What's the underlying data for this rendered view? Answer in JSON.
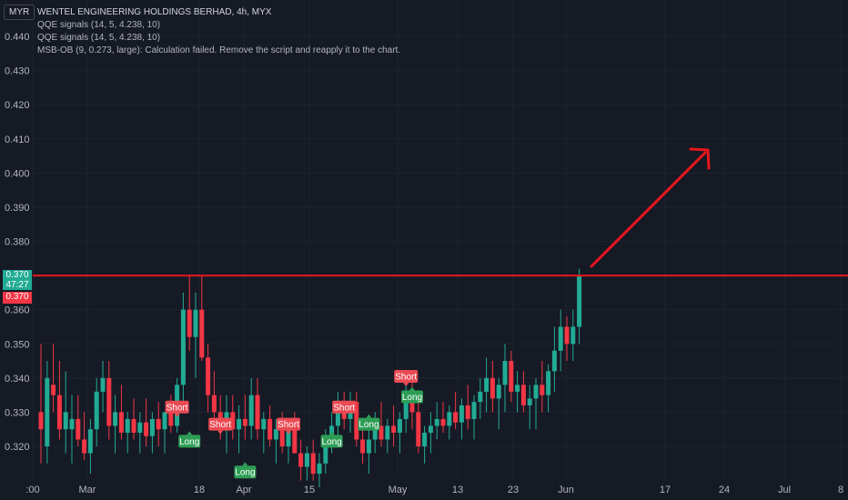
{
  "header": {
    "currency": "MYR",
    "title": "WENTEL ENGINEERING HOLDINGS BERHAD, 4h, MYX",
    "indicators": [
      "QQE signals (14, 5, 4.238, 10)",
      "QQE signals (14, 5, 4.238, 10)",
      "MSB-OB (9, 0.273, large): Calculation failed. Remove the script and reapply it to the chart."
    ]
  },
  "price_tags": {
    "last_price": "0.370",
    "countdown": "47:27",
    "line_price": "0.370"
  },
  "colors": {
    "background": "#161a25",
    "grid": "#1f2330",
    "up": "#22ab94",
    "down": "#f23645",
    "axis_text": "#b2b5be",
    "drawing": "#e8161c",
    "long_label": "#2e9e55",
    "short_label": "#ea4a53"
  },
  "chart_data": {
    "type": "candlestick",
    "y_axis": {
      "ticks": [
        "0.440",
        "0.430",
        "0.420",
        "0.410",
        "0.400",
        "0.390",
        "0.380",
        "0.360",
        "0.350",
        "0.340",
        "0.330",
        "0.320"
      ],
      "range": [
        0.311,
        0.443
      ]
    },
    "x_axis": {
      "ticks": [
        ":00",
        "Mar",
        "18",
        "Apr",
        "15",
        "May",
        "13",
        "23",
        "Jun",
        "17",
        "24",
        "Jul",
        "8"
      ]
    },
    "candles": [
      {
        "o": 0.33,
        "h": 0.35,
        "l": 0.315,
        "c": 0.325
      },
      {
        "o": 0.32,
        "h": 0.345,
        "l": 0.315,
        "c": 0.34
      },
      {
        "o": 0.338,
        "h": 0.35,
        "l": 0.33,
        "c": 0.335
      },
      {
        "o": 0.335,
        "h": 0.345,
        "l": 0.322,
        "c": 0.325
      },
      {
        "o": 0.325,
        "h": 0.342,
        "l": 0.318,
        "c": 0.33
      },
      {
        "o": 0.325,
        "h": 0.335,
        "l": 0.315,
        "c": 0.328
      },
      {
        "o": 0.328,
        "h": 0.335,
        "l": 0.32,
        "c": 0.322
      },
      {
        "o": 0.322,
        "h": 0.33,
        "l": 0.316,
        "c": 0.318
      },
      {
        "o": 0.318,
        "h": 0.328,
        "l": 0.312,
        "c": 0.325
      },
      {
        "o": 0.325,
        "h": 0.34,
        "l": 0.32,
        "c": 0.336
      },
      {
        "o": 0.336,
        "h": 0.345,
        "l": 0.33,
        "c": 0.34
      },
      {
        "o": 0.34,
        "h": 0.345,
        "l": 0.322,
        "c": 0.326
      },
      {
        "o": 0.326,
        "h": 0.335,
        "l": 0.318,
        "c": 0.33
      },
      {
        "o": 0.33,
        "h": 0.338,
        "l": 0.322,
        "c": 0.324
      },
      {
        "o": 0.324,
        "h": 0.33,
        "l": 0.318,
        "c": 0.328
      },
      {
        "o": 0.328,
        "h": 0.334,
        "l": 0.322,
        "c": 0.324
      },
      {
        "o": 0.324,
        "h": 0.33,
        "l": 0.318,
        "c": 0.327
      },
      {
        "o": 0.327,
        "h": 0.334,
        "l": 0.32,
        "c": 0.323
      },
      {
        "o": 0.323,
        "h": 0.33,
        "l": 0.318,
        "c": 0.328
      },
      {
        "o": 0.328,
        "h": 0.333,
        "l": 0.32,
        "c": 0.325
      },
      {
        "o": 0.325,
        "h": 0.33,
        "l": 0.318,
        "c": 0.33
      },
      {
        "o": 0.33,
        "h": 0.335,
        "l": 0.324,
        "c": 0.326
      },
      {
        "o": 0.326,
        "h": 0.34,
        "l": 0.324,
        "c": 0.338
      },
      {
        "o": 0.338,
        "h": 0.365,
        "l": 0.33,
        "c": 0.36
      },
      {
        "o": 0.36,
        "h": 0.37,
        "l": 0.348,
        "c": 0.352
      },
      {
        "o": 0.352,
        "h": 0.365,
        "l": 0.34,
        "c": 0.36
      },
      {
        "o": 0.36,
        "h": 0.37,
        "l": 0.345,
        "c": 0.346
      },
      {
        "o": 0.346,
        "h": 0.35,
        "l": 0.33,
        "c": 0.335
      },
      {
        "o": 0.335,
        "h": 0.342,
        "l": 0.325,
        "c": 0.33
      },
      {
        "o": 0.33,
        "h": 0.335,
        "l": 0.322,
        "c": 0.326
      },
      {
        "o": 0.326,
        "h": 0.335,
        "l": 0.318,
        "c": 0.33
      },
      {
        "o": 0.33,
        "h": 0.335,
        "l": 0.322,
        "c": 0.325
      },
      {
        "o": 0.325,
        "h": 0.332,
        "l": 0.318,
        "c": 0.328
      },
      {
        "o": 0.328,
        "h": 0.335,
        "l": 0.322,
        "c": 0.326
      },
      {
        "o": 0.326,
        "h": 0.34,
        "l": 0.322,
        "c": 0.335
      },
      {
        "o": 0.335,
        "h": 0.34,
        "l": 0.322,
        "c": 0.325
      },
      {
        "o": 0.325,
        "h": 0.33,
        "l": 0.318,
        "c": 0.328
      },
      {
        "o": 0.328,
        "h": 0.332,
        "l": 0.32,
        "c": 0.322
      },
      {
        "o": 0.322,
        "h": 0.328,
        "l": 0.315,
        "c": 0.325
      },
      {
        "o": 0.325,
        "h": 0.33,
        "l": 0.318,
        "c": 0.32
      },
      {
        "o": 0.32,
        "h": 0.328,
        "l": 0.315,
        "c": 0.326
      },
      {
        "o": 0.326,
        "h": 0.33,
        "l": 0.318,
        "c": 0.318
      },
      {
        "o": 0.318,
        "h": 0.322,
        "l": 0.31,
        "c": 0.314
      },
      {
        "o": 0.314,
        "h": 0.32,
        "l": 0.31,
        "c": 0.318
      },
      {
        "o": 0.318,
        "h": 0.322,
        "l": 0.31,
        "c": 0.312
      },
      {
        "o": 0.312,
        "h": 0.318,
        "l": 0.308,
        "c": 0.315
      },
      {
        "o": 0.315,
        "h": 0.325,
        "l": 0.312,
        "c": 0.322
      },
      {
        "o": 0.322,
        "h": 0.33,
        "l": 0.318,
        "c": 0.326
      },
      {
        "o": 0.326,
        "h": 0.336,
        "l": 0.322,
        "c": 0.333
      },
      {
        "o": 0.333,
        "h": 0.336,
        "l": 0.325,
        "c": 0.328
      },
      {
        "o": 0.328,
        "h": 0.336,
        "l": 0.324,
        "c": 0.333
      },
      {
        "o": 0.333,
        "h": 0.336,
        "l": 0.32,
        "c": 0.322
      },
      {
        "o": 0.322,
        "h": 0.328,
        "l": 0.315,
        "c": 0.318
      },
      {
        "o": 0.318,
        "h": 0.325,
        "l": 0.312,
        "c": 0.322
      },
      {
        "o": 0.322,
        "h": 0.33,
        "l": 0.318,
        "c": 0.326
      },
      {
        "o": 0.326,
        "h": 0.333,
        "l": 0.32,
        "c": 0.322
      },
      {
        "o": 0.322,
        "h": 0.328,
        "l": 0.318,
        "c": 0.326
      },
      {
        "o": 0.326,
        "h": 0.332,
        "l": 0.32,
        "c": 0.324
      },
      {
        "o": 0.324,
        "h": 0.33,
        "l": 0.318,
        "c": 0.328
      },
      {
        "o": 0.328,
        "h": 0.34,
        "l": 0.324,
        "c": 0.336
      },
      {
        "o": 0.336,
        "h": 0.34,
        "l": 0.325,
        "c": 0.33
      },
      {
        "o": 0.33,
        "h": 0.336,
        "l": 0.318,
        "c": 0.32
      },
      {
        "o": 0.32,
        "h": 0.326,
        "l": 0.315,
        "c": 0.324
      },
      {
        "o": 0.324,
        "h": 0.33,
        "l": 0.318,
        "c": 0.326
      },
      {
        "o": 0.326,
        "h": 0.333,
        "l": 0.322,
        "c": 0.328
      },
      {
        "o": 0.328,
        "h": 0.333,
        "l": 0.324,
        "c": 0.326
      },
      {
        "o": 0.326,
        "h": 0.332,
        "l": 0.322,
        "c": 0.33
      },
      {
        "o": 0.33,
        "h": 0.336,
        "l": 0.325,
        "c": 0.327
      },
      {
        "o": 0.327,
        "h": 0.334,
        "l": 0.322,
        "c": 0.332
      },
      {
        "o": 0.332,
        "h": 0.338,
        "l": 0.325,
        "c": 0.328
      },
      {
        "o": 0.328,
        "h": 0.335,
        "l": 0.322,
        "c": 0.333
      },
      {
        "o": 0.333,
        "h": 0.34,
        "l": 0.328,
        "c": 0.336
      },
      {
        "o": 0.336,
        "h": 0.346,
        "l": 0.33,
        "c": 0.34
      },
      {
        "o": 0.34,
        "h": 0.345,
        "l": 0.33,
        "c": 0.334
      },
      {
        "o": 0.334,
        "h": 0.34,
        "l": 0.325,
        "c": 0.338
      },
      {
        "o": 0.338,
        "h": 0.35,
        "l": 0.33,
        "c": 0.345
      },
      {
        "o": 0.345,
        "h": 0.348,
        "l": 0.333,
        "c": 0.336
      },
      {
        "o": 0.336,
        "h": 0.342,
        "l": 0.33,
        "c": 0.338
      },
      {
        "o": 0.338,
        "h": 0.342,
        "l": 0.33,
        "c": 0.332
      },
      {
        "o": 0.332,
        "h": 0.338,
        "l": 0.325,
        "c": 0.334
      },
      {
        "o": 0.334,
        "h": 0.34,
        "l": 0.325,
        "c": 0.338
      },
      {
        "o": 0.338,
        "h": 0.345,
        "l": 0.33,
        "c": 0.335
      },
      {
        "o": 0.335,
        "h": 0.344,
        "l": 0.33,
        "c": 0.342
      },
      {
        "o": 0.342,
        "h": 0.355,
        "l": 0.336,
        "c": 0.348
      },
      {
        "o": 0.348,
        "h": 0.36,
        "l": 0.342,
        "c": 0.355
      },
      {
        "o": 0.355,
        "h": 0.358,
        "l": 0.345,
        "c": 0.35
      },
      {
        "o": 0.35,
        "h": 0.36,
        "l": 0.345,
        "c": 0.355
      },
      {
        "o": 0.355,
        "h": 0.372,
        "l": 0.35,
        "c": 0.37
      }
    ],
    "horizontal_line": 0.37,
    "annotations": [
      {
        "text": "Short",
        "type": "short",
        "index": 22,
        "price": 0.3315
      },
      {
        "text": "Long",
        "type": "long",
        "index": 24,
        "price": 0.3215
      },
      {
        "text": "Short",
        "type": "short",
        "index": 29,
        "price": 0.3265
      },
      {
        "text": "Long",
        "type": "long",
        "index": 33,
        "price": 0.3125
      },
      {
        "text": "Short",
        "type": "short",
        "index": 40,
        "price": 0.3265
      },
      {
        "text": "Long",
        "type": "long",
        "index": 47,
        "price": 0.3215
      },
      {
        "text": "Short",
        "type": "short",
        "index": 49,
        "price": 0.3315
      },
      {
        "text": "Long",
        "type": "long",
        "index": 53,
        "price": 0.3265
      },
      {
        "text": "Short",
        "type": "short",
        "index": 59,
        "price": 0.3405
      },
      {
        "text": "Long",
        "type": "long",
        "index": 60,
        "price": 0.3345
      }
    ]
  }
}
